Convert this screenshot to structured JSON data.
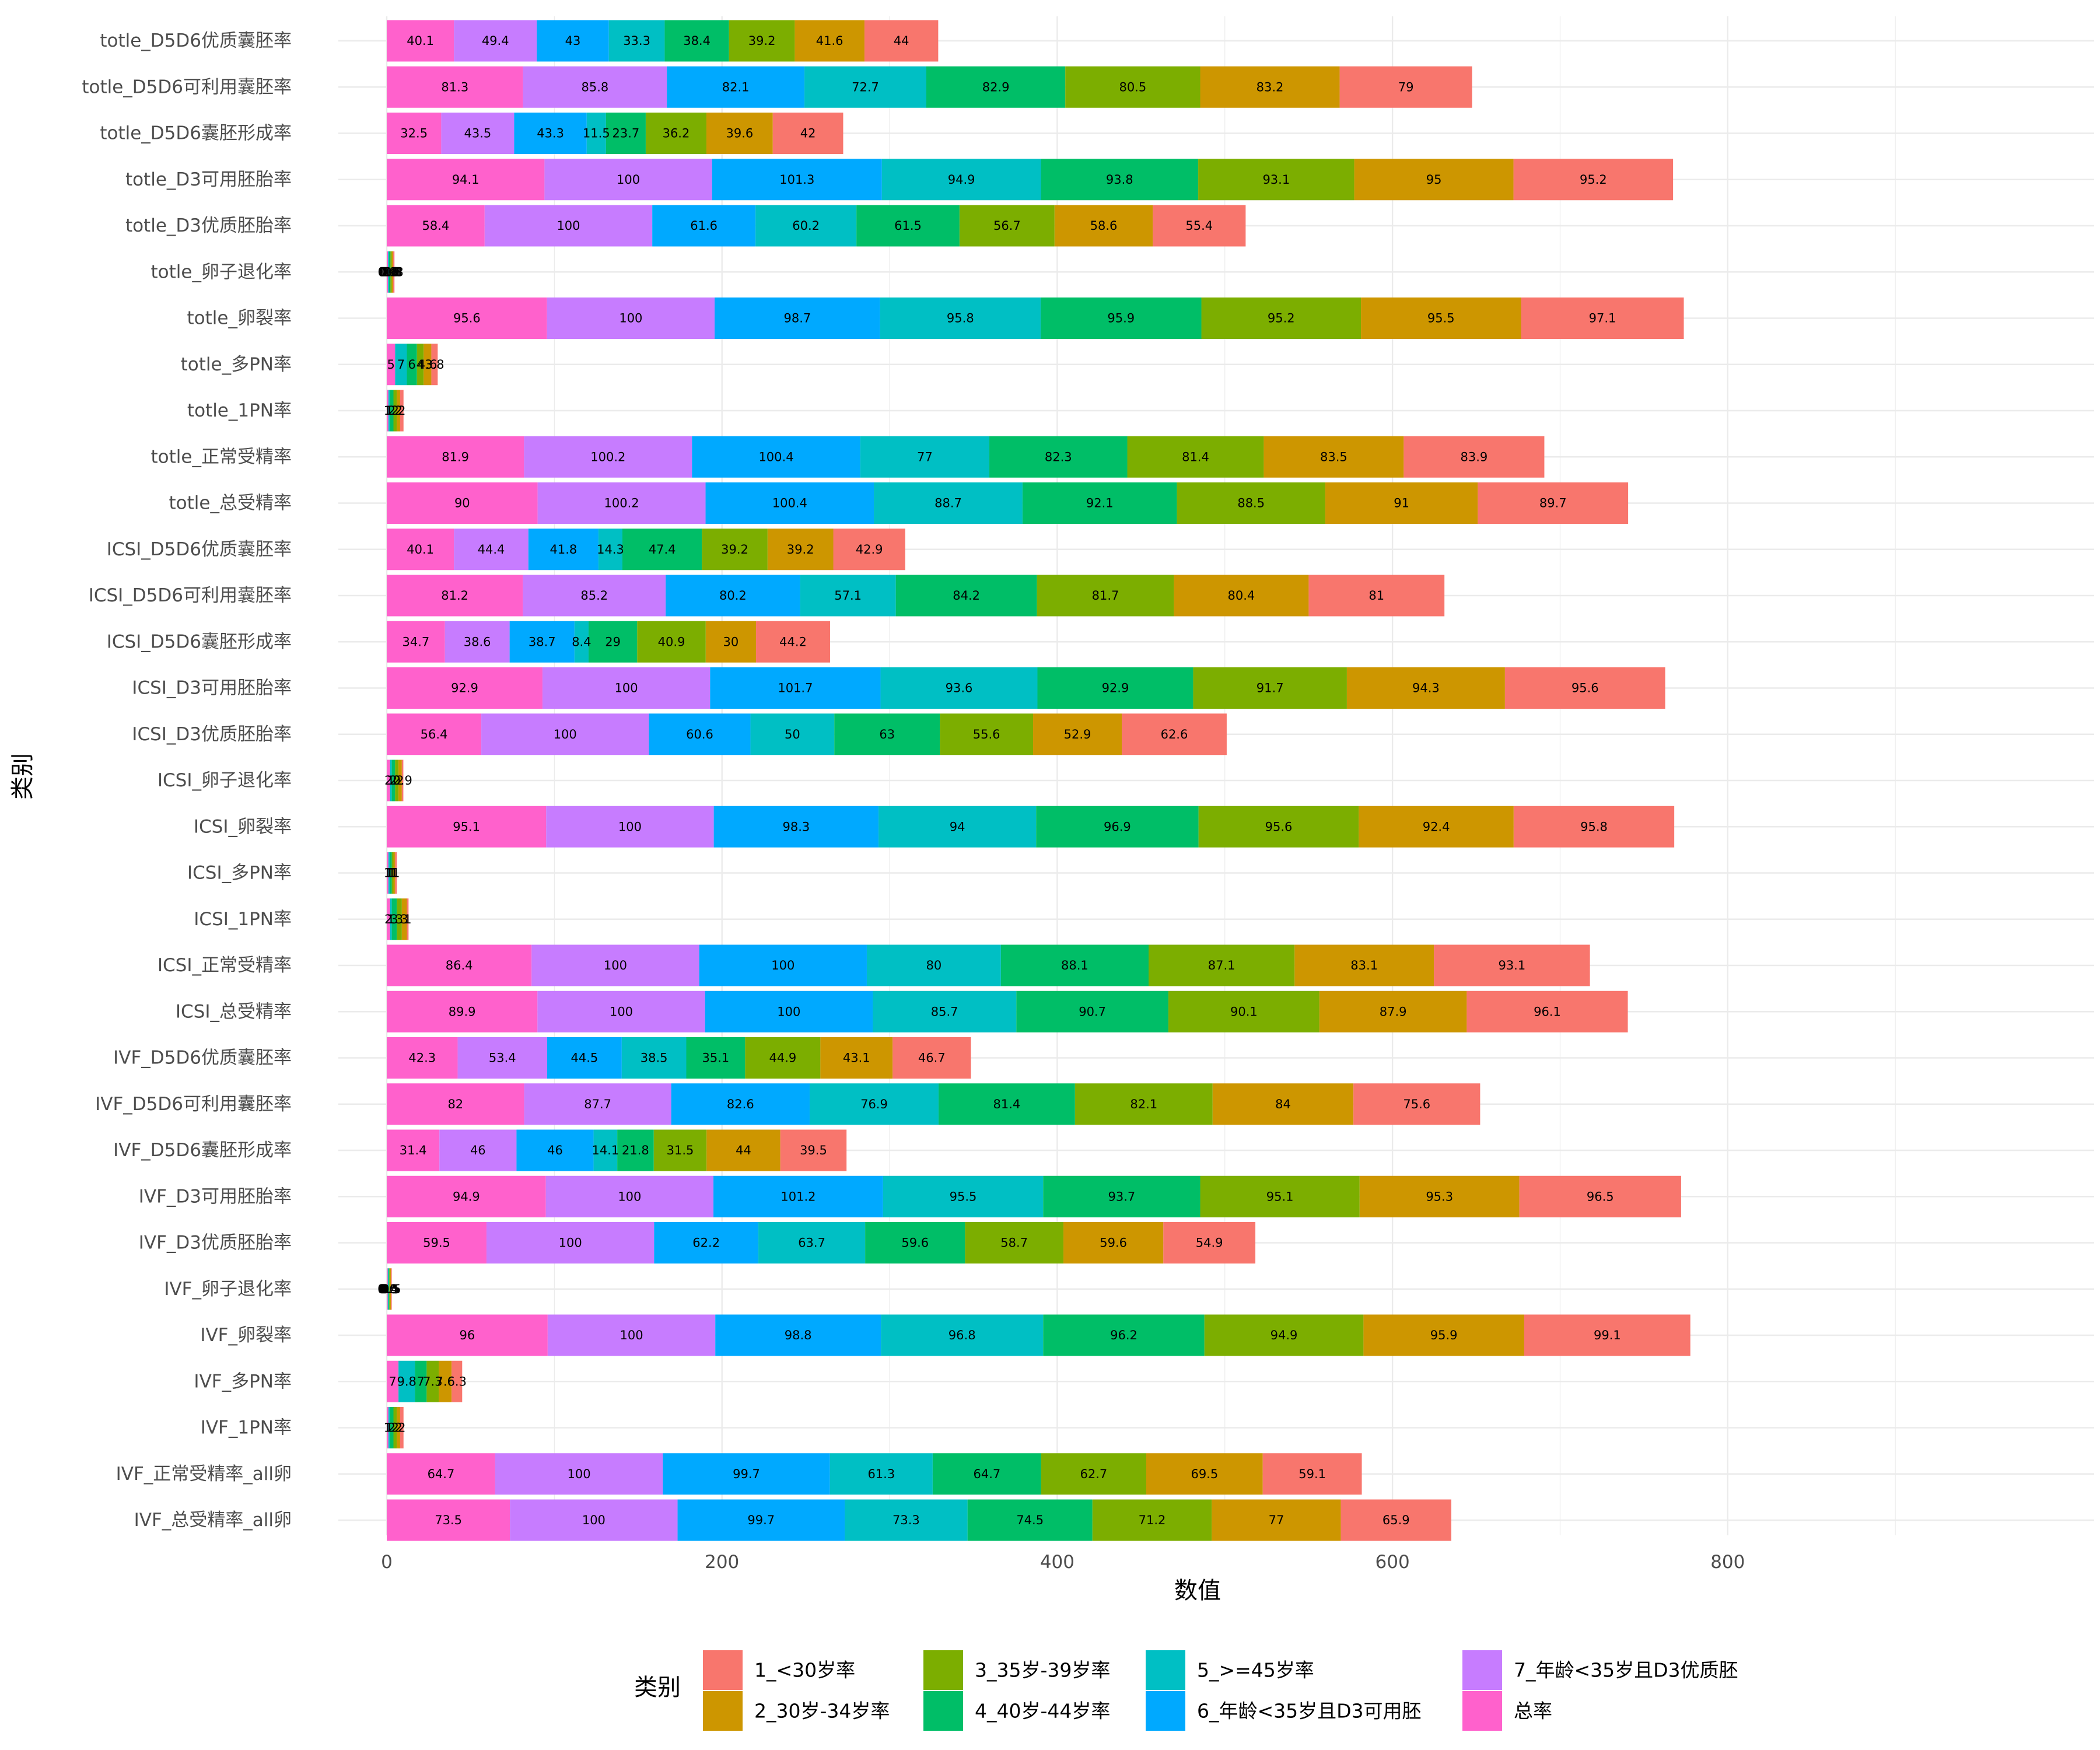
{
  "chart_data": {
    "type": "bar",
    "orientation": "horizontal",
    "stacked": true,
    "xlabel": "数值",
    "ylabel": "类别",
    "xlim": [
      0,
      800
    ],
    "x_ticks": [
      0,
      200,
      400,
      600,
      800
    ],
    "grid": true,
    "legend_title": "类别",
    "legend_position": "bottom",
    "categories": [
      "totle_D5D6优质囊胚率",
      "totle_D5D6可利用囊胚率",
      "totle_D5D6囊胚形成率",
      "totle_D3可用胚胎率",
      "totle_D3优质胚胎率",
      "totle_卵子退化率",
      "totle_卵裂率",
      "totle_多PN率",
      "totle_1PN率",
      "totle_正常受精率",
      "totle_总受精率",
      "ICSI_D5D6优质囊胚率",
      "ICSI_D5D6可利用囊胚率",
      "ICSI_D5D6囊胚形成率",
      "ICSI_D3可用胚胎率",
      "ICSI_D3优质胚胎率",
      "ICSI_卵子退化率",
      "ICSI_卵裂率",
      "ICSI_多PN率",
      "ICSI_1PN率",
      "ICSI_正常受精率",
      "ICSI_总受精率",
      "IVF_D5D6优质囊胚率",
      "IVF_D5D6可利用囊胚率",
      "IVF_D5D6囊胚形成率",
      "IVF_D3可用胚胎率",
      "IVF_D3优质胚胎率",
      "IVF_卵子退化率",
      "IVF_卵裂率",
      "IVF_多PN率",
      "IVF_1PN率",
      "IVF_正常受精率_all卵",
      "IVF_总受精率_all卵"
    ],
    "series": [
      {
        "name": "总率",
        "color": "#FF61CC",
        "values": [
          40.1,
          81.3,
          32.5,
          94.1,
          58.4,
          0.8,
          95.6,
          5,
          1,
          81.9,
          90,
          40.1,
          81.2,
          34.7,
          92.9,
          56.4,
          2,
          95.1,
          1,
          2,
          86.4,
          89.9,
          42.3,
          82,
          31.4,
          94.9,
          59.5,
          0.6,
          96,
          7,
          1,
          64.7,
          73.5
        ]
      },
      {
        "name": "7_年龄<35岁且D3优质胚",
        "color": "#C77CFF",
        "values": [
          49.4,
          85.8,
          43.5,
          100,
          100,
          0,
          100,
          0,
          0,
          100.2,
          100.2,
          44.4,
          85.2,
          38.6,
          100,
          100,
          0,
          100,
          0,
          0,
          100,
          100,
          53.4,
          87.7,
          46,
          100,
          100,
          0,
          100,
          0,
          0,
          100,
          100
        ]
      },
      {
        "name": "6_年龄<35岁且D3可用胚",
        "color": "#00A9FF",
        "values": [
          43,
          82.1,
          43.3,
          101.3,
          61.6,
          0,
          98.7,
          0,
          0,
          100.4,
          100.4,
          41.8,
          80.2,
          38.7,
          101.7,
          60.6,
          0,
          98.3,
          0,
          0,
          100,
          100,
          44.5,
          82.6,
          46,
          101.2,
          62.2,
          0,
          98.8,
          0,
          0,
          99.7,
          99.7
        ]
      },
      {
        "name": "5_>=45岁率",
        "color": "#00BFC4",
        "values": [
          33.3,
          72.7,
          11.5,
          94.9,
          60.2,
          0.6,
          95.8,
          7,
          1,
          77,
          88.7,
          14.3,
          57.1,
          8.4,
          93.6,
          50,
          1,
          94,
          1,
          1,
          80,
          85.7,
          38.5,
          76.9,
          14.1,
          95.5,
          63.7,
          0.5,
          96.8,
          9.8,
          1,
          61.3,
          73.3
        ]
      },
      {
        "name": "4_40岁-44岁率",
        "color": "#00BE67",
        "values": [
          38.4,
          82.9,
          23.7,
          93.8,
          61.5,
          0.8,
          95.9,
          6,
          2,
          82.3,
          92.1,
          47.4,
          84.2,
          29,
          92.9,
          63,
          2,
          96.9,
          1,
          3,
          88.1,
          90.7,
          35.1,
          81.4,
          21.8,
          93.7,
          59.6,
          0.4,
          96.2,
          7,
          2,
          64.7,
          74.5
        ]
      },
      {
        "name": "3_35岁-39岁率",
        "color": "#7CAE00",
        "values": [
          39.2,
          80.5,
          36.2,
          93.1,
          56.7,
          0.8,
          95.2,
          4,
          2,
          81.4,
          88.5,
          39.2,
          81.7,
          40.9,
          91.7,
          55.6,
          2,
          95.6,
          1,
          3,
          87.1,
          90.1,
          44.9,
          82.1,
          31.5,
          95.1,
          58.7,
          0.5,
          94.9,
          7.3,
          2,
          62.7,
          71.2
        ]
      },
      {
        "name": "2_30岁-34岁率",
        "color": "#CD9600",
        "values": [
          41.6,
          83.2,
          39.6,
          95,
          58.6,
          0.8,
          95.5,
          4.6,
          2,
          83.5,
          91,
          39.2,
          80.4,
          30,
          94.3,
          52.9,
          2,
          92.4,
          1,
          3,
          83.1,
          87.9,
          43.1,
          84,
          44,
          95.3,
          59.6,
          0.5,
          95.9,
          7.6,
          2,
          69.5,
          77
        ]
      },
      {
        "name": "1_<30岁率",
        "color": "#F8766D",
        "values": [
          44,
          79,
          42,
          95.2,
          55.4,
          0.8,
          97.1,
          3.8,
          2,
          83.9,
          89.7,
          42.9,
          81,
          44.2,
          95.6,
          62.6,
          0.9,
          95.8,
          1,
          1,
          93.1,
          96.1,
          46.7,
          75.6,
          39.5,
          96.5,
          54.9,
          0.5,
          99.1,
          6.3,
          2,
          59.1,
          65.9
        ]
      }
    ],
    "legend_order": [
      "1_<30岁率",
      "2_30岁-34岁率",
      "3_35岁-39岁率",
      "4_40岁-44岁率",
      "5_>=45岁率",
      "6_年龄<35岁且D3可用胚",
      "7_年龄<35岁且D3优质胚",
      "总率"
    ]
  }
}
